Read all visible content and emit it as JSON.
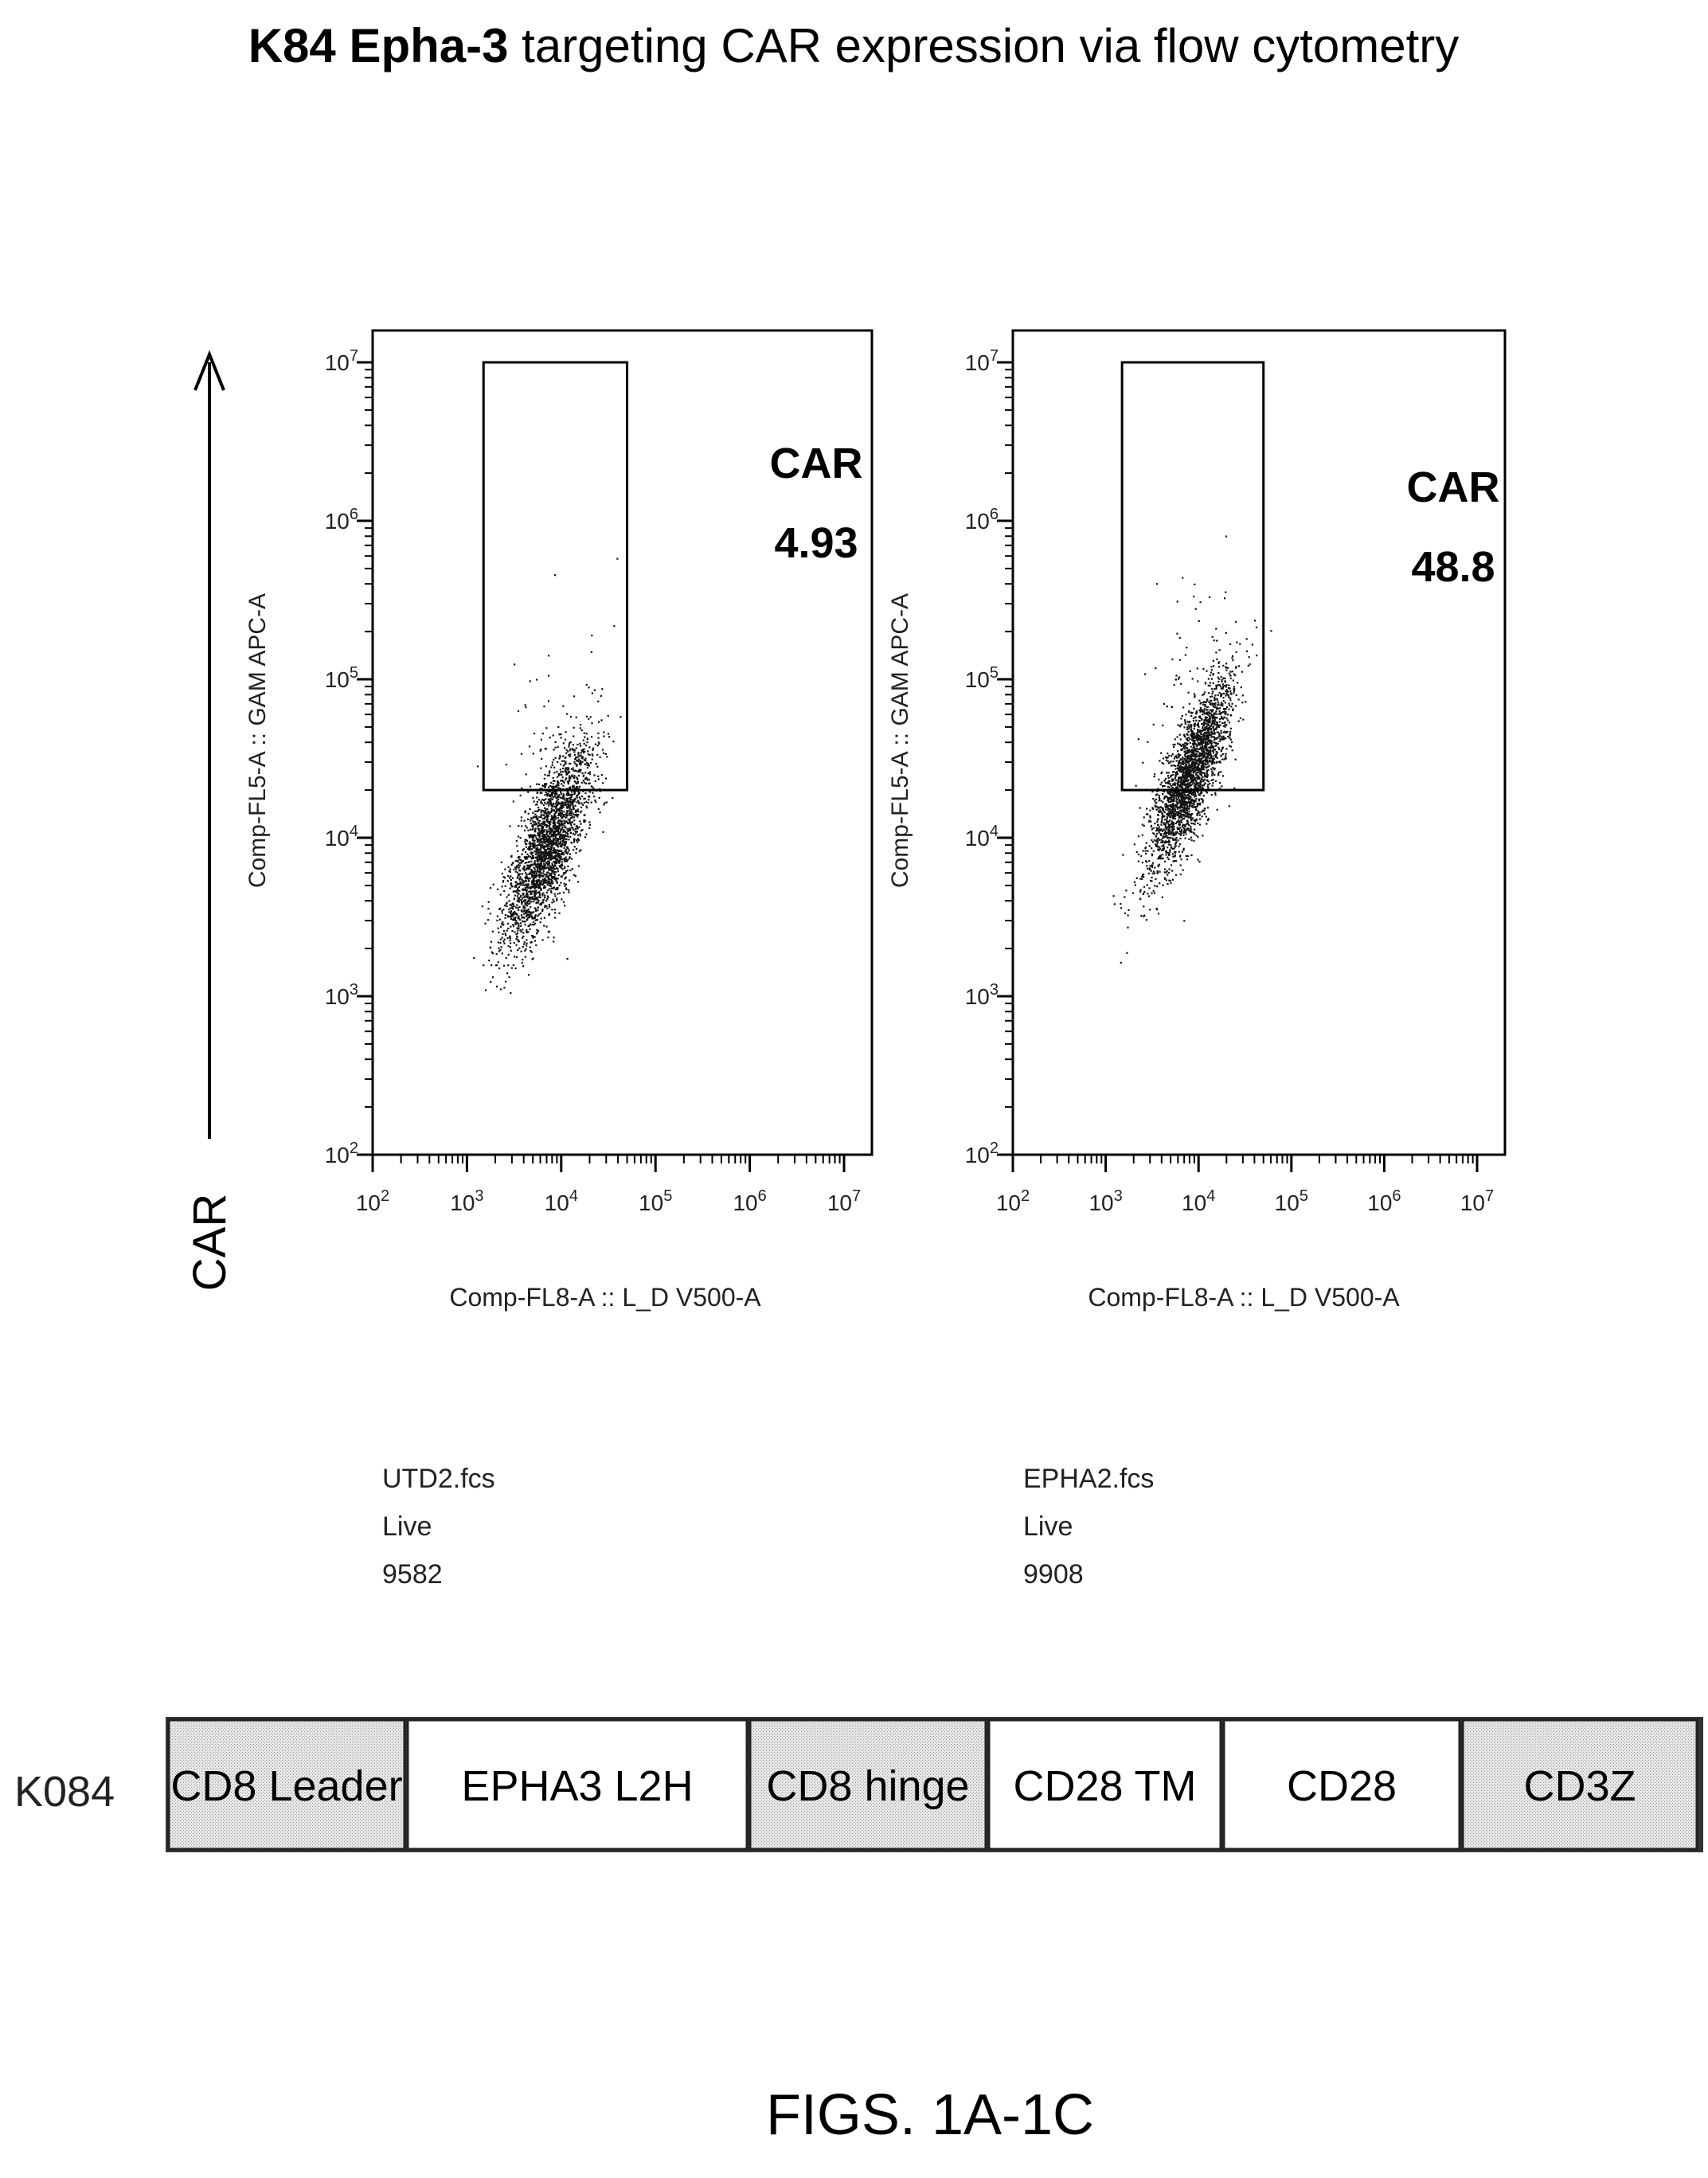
{
  "figure": {
    "title_bold": "K84 Epha-3",
    "title_rest": " targeting CAR expression via flow cytometry",
    "y_arrow_label": "CAR",
    "caption": "FIGS. 1A-1C"
  },
  "chart_data": [
    {
      "type": "scatter",
      "xlabel": "Comp-FL8-A :: L_D V500-A",
      "ylabel": "Comp-FL5-A :: GAM APC-A",
      "x_scale": "log",
      "y_scale": "log",
      "xlim": [
        100,
        10000000
      ],
      "ylim": [
        100,
        10000000
      ],
      "x_ticks": [
        "10^2",
        "10^3",
        "10^4",
        "10^5",
        "10^6",
        "10^7"
      ],
      "y_ticks": [
        "10^2",
        "10^3",
        "10^4",
        "10^5",
        "10^6",
        "10^7"
      ],
      "gate": {
        "name": "CAR",
        "value": "4.93",
        "x_range": [
          1500,
          50000
        ],
        "y_range": [
          20000,
          10000000
        ]
      },
      "sample": {
        "file": "UTD2.fcs",
        "population": "Live",
        "count": "9582"
      },
      "cluster": {
        "center_x": 7000,
        "center_y": 9000,
        "spread_log": 0.42,
        "corr": 0.75
      }
    },
    {
      "type": "scatter",
      "xlabel": "Comp-FL8-A :: L_D V500-A",
      "ylabel": "Comp-FL5-A :: GAM APC-A",
      "x_scale": "log",
      "y_scale": "log",
      "xlim": [
        100,
        10000000
      ],
      "ylim": [
        100,
        10000000
      ],
      "x_ticks": [
        "10^2",
        "10^3",
        "10^4",
        "10^5",
        "10^6",
        "10^7"
      ],
      "y_ticks": [
        "10^2",
        "10^3",
        "10^4",
        "10^5",
        "10^6",
        "10^7"
      ],
      "gate": {
        "name": "CAR",
        "value": "48.8",
        "x_range": [
          1500,
          50000
        ],
        "y_range": [
          20000,
          10000000
        ]
      },
      "sample": {
        "file": "EPHA2.fcs",
        "population": "Live",
        "count": "9908"
      },
      "cluster": {
        "center_x": 8000,
        "center_y": 25000,
        "spread_log": 0.4,
        "corr": 0.8
      }
    }
  ],
  "construct": {
    "label": "K084",
    "segments": [
      {
        "name": "CD8 Leader",
        "shaded": true
      },
      {
        "name": "EPHA3 L2H",
        "shaded": false
      },
      {
        "name": "CD8 hinge",
        "shaded": true
      },
      {
        "name": "CD28 TM",
        "shaded": false
      },
      {
        "name": "CD28",
        "shaded": false
      },
      {
        "name": "CD3Z",
        "shaded": true
      }
    ]
  }
}
